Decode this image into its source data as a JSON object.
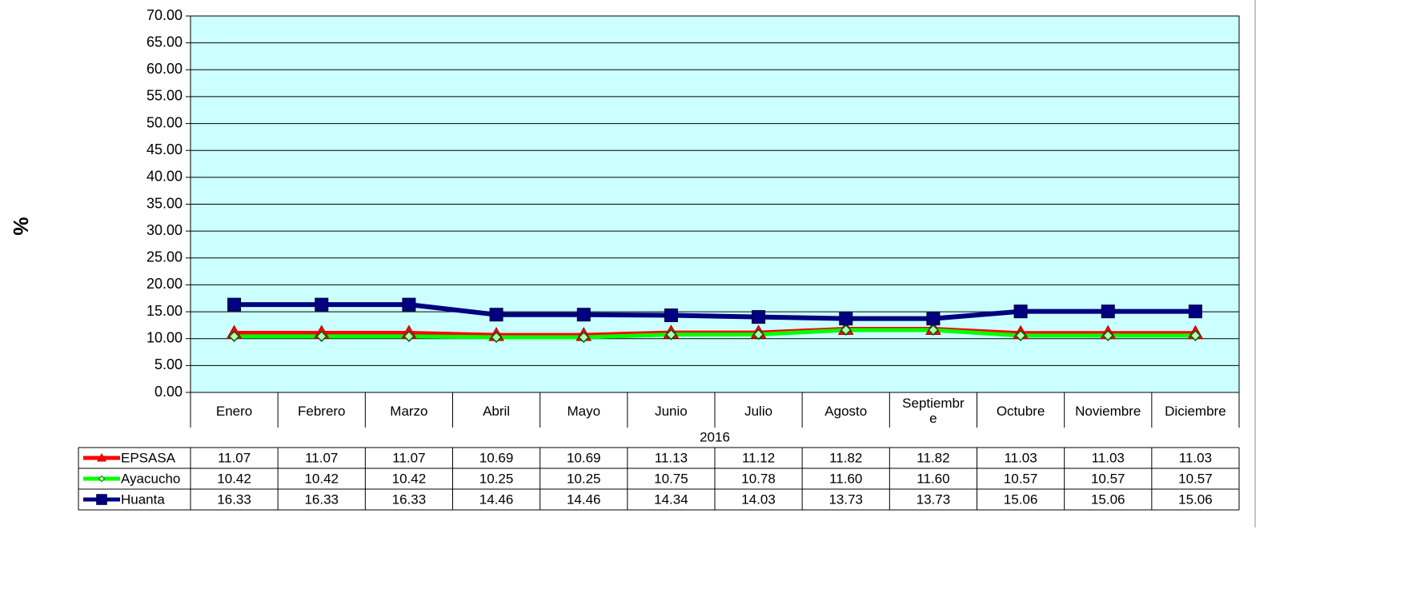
{
  "chart_data": {
    "type": "line",
    "y_label": "%",
    "x_group": "2016",
    "categories": [
      "Enero",
      "Febrero",
      "Marzo",
      "Abril",
      "Mayo",
      "Junio",
      "Julio",
      "Agosto",
      "Septiembre",
      "Octubre",
      "Noviembre",
      "Diciembre"
    ],
    "series": [
      {
        "name": "EPSASA",
        "color": "#ff0000",
        "marker": "triangle",
        "values": [
          11.07,
          11.07,
          11.07,
          10.69,
          10.69,
          11.13,
          11.12,
          11.82,
          11.82,
          11.03,
          11.03,
          11.03
        ],
        "value_labels": [
          "11.07",
          "11.07",
          "11.07",
          "10.69",
          "10.69",
          "11.13",
          "11.12",
          "11.82",
          "11.82",
          "11.03",
          "11.03",
          "11.03"
        ]
      },
      {
        "name": "Ayacucho",
        "color": "#00ff00",
        "marker": "diamond",
        "values": [
          10.42,
          10.42,
          10.42,
          10.25,
          10.25,
          10.75,
          10.78,
          11.6,
          11.6,
          10.57,
          10.57,
          10.57
        ],
        "value_labels": [
          "10.42",
          "10.42",
          "10.42",
          "10.25",
          "10.25",
          "10.75",
          "10.78",
          "11.60",
          "11.60",
          "10.57",
          "10.57",
          "10.57"
        ]
      },
      {
        "name": "Huanta",
        "color": "#000080",
        "marker": "square",
        "values": [
          16.33,
          16.33,
          16.33,
          14.46,
          14.46,
          14.34,
          14.03,
          13.73,
          13.73,
          15.06,
          15.06,
          15.06
        ],
        "value_labels": [
          "16.33",
          "16.33",
          "16.33",
          "14.46",
          "14.46",
          "14.34",
          "14.03",
          "13.73",
          "13.73",
          "15.06",
          "15.06",
          "15.06"
        ]
      }
    ],
    "ylim": [
      0,
      70
    ],
    "yticks": [
      {
        "value": 0,
        "label": "0.00"
      },
      {
        "value": 5,
        "label": "5.00"
      },
      {
        "value": 10,
        "label": "10.00"
      },
      {
        "value": 15,
        "label": "15.00"
      },
      {
        "value": 20,
        "label": "20.00"
      },
      {
        "value": 25,
        "label": "25.00"
      },
      {
        "value": 30,
        "label": "30.00"
      },
      {
        "value": 35,
        "label": "35.00"
      },
      {
        "value": 40,
        "label": "40.00"
      },
      {
        "value": 45,
        "label": "45.00"
      },
      {
        "value": 50,
        "label": "50.00"
      },
      {
        "value": 55,
        "label": "55.00"
      },
      {
        "value": 60,
        "label": "60.00"
      },
      {
        "value": 65,
        "label": "65.00"
      },
      {
        "value": 70,
        "label": "70.00"
      }
    ],
    "grid": true,
    "plot_background": "#ccffff"
  }
}
